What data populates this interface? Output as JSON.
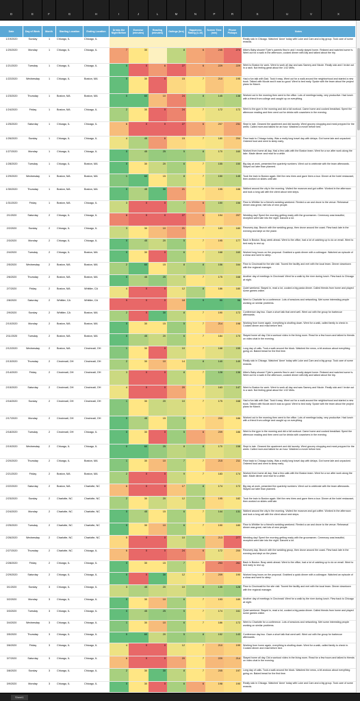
{
  "column_letters": [
    "D",
    "E",
    "F",
    "G",
    "H",
    "I",
    "J",
    "L",
    "M",
    "N",
    "P",
    "R",
    "S",
    "U",
    "V",
    "X"
  ],
  "headers": [
    "Date",
    "Day of Week",
    "Month",
    "Starting Location",
    "Ending Location",
    "Drinks the Night Before",
    "Exercise (minutes)",
    "Reading (minutes)",
    "Outings (hrs)",
    "Happiness Rating (1-10)",
    "Screen Time (min)",
    "Phone Pickups",
    "Notes"
  ],
  "notes_paragraphs": [
    "Really sick in Chicago. Watched 'Anne' today with Luke and Cam and a big group. Took care of some errands.",
    "Mike's Baby shower! Tyler's parents flew in and I mostly stayed home. Relaxed and watched some tv. Went out for a walk in the afternoon, cooked dinner with Ally and talked about the trip.",
    "Went to Boston for work. Went to work all day and saw Sammy and Nicole. Really sick and I broke out in a rash. Not feeling great about the 1:02 Mets.",
    "Had a fun talk with Dad. Took it easy. Went out for a walk around the neighborhood and started a new book. Talked with Nicole and it was so good. Went to bed early. Spoke with the team about the project plans for March.",
    "Worked out in the morning then went to the office. Lots of meetings today, very productive. Had lunch with a friend from college and caught up on everything.",
    "Went to the gym in the morning and did a full workout. Came home and cooked breakfast. Spent the afternoon reading and then went out for drinks with coworkers in the evening.",
    "Slept in late. Cleaned the apartment and did laundry. Went grocery shopping and meal prepped for the week. Called mom and talked for an hour. Watched a movie before bed.",
    "Flew back to Chicago today. Was a really long travel day with delays. Got home late and unpacked. Ordered food and went to sleep early.",
    "Worked from home all day. Had a few calls with the Boston team. Went for a run after work along the lake. Made dinner and read for a while.",
    "Big day at work, presented the quarterly numbers. Went out to celebrate with the team afterwards. Stayed out later than planned.",
    "Took the train to Boston again. Met the new hires and gave them a tour. Dinner at the hotel restaurant, then worked on slides until late.",
    "Walked around the city in the morning. Visited the museum and got coffee. Worked in the afternoon and took a long call with the client about next steps.",
    "Flew to Whittier for a friend's wedding weekend. Rented a car and drove to the venue. Rehearsal dinner was great, met lots of new people.",
    "Wedding day! Spent the morning getting ready with the groomsmen. Ceremony was beautiful, reception went late into the night. Danced a lot.",
    "Recovery day. Brunch with the wedding group, then drove around the coast. Flew back late in the evening and slept on the plane.",
    "Back in Boston. Busy week ahead. Went to the office, had a lot of catching up to do on email. Went to bed early to rest up.",
    "Worked long hours on the proposal. Grabbed a quick dinner with a colleague. Watched an episode of a show and went to sleep.",
    "Flew to Cincinnati for the site visit. Toured the facility and met with the local team. Dinner downtown with the regional manager.",
    "Another day of meetings in Cincinnati. Went for a walk by the river during lunch. Flew back to Chicago at night.",
    "Quiet weekend. Stayed in, read a lot, cooked a big pasta dinner. Called friends from home and played some games online.",
    "Went to Charlotte for a conference. Lots of sessions and networking. Met some interesting people working on similar problems.",
    "Conference day two. Gave a short talk that went well. Went out with the group for barbecue afterwards.",
    "Working from home again, everything is shutting down. Went for a walk, called family to check in. Cooked dinner and read before bed.",
    "Stayed home all day. Did a workout video in the living room. Read for a few hours and talked to friends on video chat in the evening.",
    "Long day of calls. Took a walk around the block. Watched the news, a bit anxious about everything going on. Baked bread for the first time."
  ],
  "rows": [
    {
      "date": "1/19/2020",
      "day": "Sunday",
      "month": "1",
      "start": "Chicago, IL",
      "end": "Chicago, IL",
      "drinks": "",
      "exercise": "",
      "reading": "",
      "outings": "",
      "happy": "",
      "screen": "",
      "pickups": ""
    },
    {
      "date": "1/20/2020",
      "day": "Monday",
      "month": "1",
      "start": "Chicago, IL",
      "end": "Chicago, IL",
      "drinks": "7",
      "exercise": "30",
      "reading": "",
      "outings": "8",
      "happy": "6",
      "screen": "245",
      "pickups": "274"
    },
    {
      "date": "1/21/2020",
      "day": "Tuesday",
      "month": "1",
      "start": "Chicago, IL",
      "end": "Chicago, IL",
      "drinks": "0",
      "exercise": "0",
      "reading": "6",
      "outings": "27",
      "happy": "6",
      "screen": "229",
      "pickups": "229"
    },
    {
      "date": "1/22/2020",
      "day": "Wednesday",
      "month": "1",
      "start": "Chicago, IL",
      "end": "Boston, MA",
      "drinks": "0",
      "exercise": "30",
      "reading": "0",
      "outings": "15",
      "happy": "7",
      "screen": "210",
      "pickups": "195"
    },
    {
      "date": "1/23/2020",
      "day": "Thursday",
      "month": "1",
      "start": "Boston, MA",
      "end": "Boston, MA",
      "drinks": "0",
      "exercise": "60",
      "reading": "10",
      "outings": "24",
      "happy": "8",
      "screen": "145",
      "pickups": "138"
    },
    {
      "date": "1/24/2020",
      "day": "Friday",
      "month": "1",
      "start": "Boston, MA",
      "end": "Chicago, IL",
      "drinks": "2",
      "exercise": "30",
      "reading": "0",
      "outings": "24",
      "happy": "7",
      "screen": "172",
      "pickups": "172"
    },
    {
      "date": "1/25/2020",
      "day": "Saturday",
      "month": "1",
      "start": "Chicago, IL",
      "end": "Chicago, IL",
      "drinks": "6",
      "exercise": "0",
      "reading": "0",
      "outings": "27",
      "happy": "6",
      "screen": "207",
      "pickups": "231"
    },
    {
      "date": "1/26/2020",
      "day": "Sunday",
      "month": "1",
      "start": "Chicago, IL",
      "end": "Chicago, IL",
      "drinks": "4",
      "exercise": "45",
      "reading": "6",
      "outings": "15",
      "happy": "7",
      "screen": "180",
      "pickups": "204"
    },
    {
      "date": "1/27/2020",
      "day": "Monday",
      "month": "1",
      "start": "Chicago, IL",
      "end": "Chicago, IL",
      "drinks": "0",
      "exercise": "45",
      "reading": "25",
      "outings": "5",
      "happy": "8",
      "screen": "170",
      "pickups": "160"
    },
    {
      "date": "1/28/2020",
      "day": "Tuesday",
      "month": "1",
      "start": "Chicago, IL",
      "end": "Boston, MA",
      "drinks": "0",
      "exercise": "30",
      "reading": "20",
      "outings": "6",
      "happy": "7",
      "screen": "155",
      "pickups": "150"
    },
    {
      "date": "1/29/2020",
      "day": "Wednesday",
      "month": "1",
      "start": "Boston, MA",
      "end": "Boston, MA",
      "drinks": "1",
      "exercise": "60",
      "reading": "15",
      "outings": "8",
      "happy": "7",
      "screen": "150",
      "pickups": "145"
    },
    {
      "date": "1/30/2020",
      "day": "Thursday",
      "month": "1",
      "start": "Boston, MA",
      "end": "Boston, MA",
      "drinks": "0",
      "exercise": "45",
      "reading": "30",
      "outings": "21",
      "happy": "7",
      "screen": "195",
      "pickups": "188"
    },
    {
      "date": "1/31/2020",
      "day": "Friday",
      "month": "1",
      "start": "Boston, MA",
      "end": "Chicago, IL",
      "drinks": "3",
      "exercise": "0",
      "reading": "0",
      "outings": "7",
      "happy": "6",
      "screen": "150",
      "pickups": "156"
    },
    {
      "date": "2/1/2020",
      "day": "Saturday",
      "month": "2",
      "start": "Chicago, IL",
      "end": "Chicago, IL",
      "drinks": "8",
      "exercise": "0",
      "reading": "0",
      "outings": "27",
      "happy": "6",
      "screen": "194",
      "pickups": "207"
    },
    {
      "date": "2/2/2020",
      "day": "Sunday",
      "month": "2",
      "start": "Chicago, IL",
      "end": "Chicago, IL",
      "drinks": "3",
      "exercise": "30",
      "reading": "10",
      "outings": "21",
      "happy": "7",
      "screen": "183",
      "pickups": "180"
    },
    {
      "date": "2/3/2020",
      "day": "Monday",
      "month": "2",
      "start": "Chicago, IL",
      "end": "Chicago, IL",
      "drinks": "0",
      "exercise": "45",
      "reading": "20",
      "outings": "5",
      "happy": "7",
      "screen": "195",
      "pickups": "177"
    },
    {
      "date": "2/4/2020",
      "day": "Tuesday",
      "month": "2",
      "start": "Chicago, IL",
      "end": "Boston, MA",
      "drinks": "0",
      "exercise": "30",
      "reading": "0",
      "outings": "6",
      "happy": "7",
      "screen": "168",
      "pickups": "160"
    },
    {
      "date": "2/5/2020",
      "day": "Wednesday",
      "month": "2",
      "start": "Boston, MA",
      "end": "Boston, MA",
      "drinks": "2",
      "exercise": "60",
      "reading": "15",
      "outings": "8",
      "happy": "8",
      "screen": "156",
      "pickups": "164"
    },
    {
      "date": "2/6/2020",
      "day": "Thursday",
      "month": "2",
      "start": "Boston, MA",
      "end": "Boston, MA",
      "drinks": "0",
      "exercise": "45",
      "reading": "25",
      "outings": "9",
      "happy": "7",
      "screen": "175",
      "pickups": "168"
    },
    {
      "date": "2/7/2020",
      "day": "Friday",
      "month": "2",
      "start": "Boston, MA",
      "end": "Whittier, CA",
      "drinks": "4",
      "exercise": "0",
      "reading": "0",
      "outings": "12",
      "happy": "8",
      "screen": "186",
      "pickups": "180"
    },
    {
      "date": "2/8/2020",
      "day": "Saturday",
      "month": "2",
      "start": "Whittier, CA",
      "end": "Whittier, CA",
      "drinks": "9",
      "exercise": "0",
      "reading": "0",
      "outings": "18",
      "happy": "9",
      "screen": "90",
      "pickups": "96"
    },
    {
      "date": "2/9/2020",
      "day": "Sunday",
      "month": "2",
      "start": "Whittier, CA",
      "end": "Boston, MA",
      "drinks": "2",
      "exercise": "0",
      "reading": "30",
      "outings": "8",
      "happy": "7",
      "screen": "190",
      "pickups": "172"
    },
    {
      "date": "2/10/2020",
      "day": "Monday",
      "month": "2",
      "start": "Boston, MA",
      "end": "Boston, MA",
      "drinks": "0",
      "exercise": "30",
      "reading": "15",
      "outings": "5",
      "happy": "7",
      "screen": "214",
      "pickups": "198"
    },
    {
      "date": "2/11/2020",
      "day": "Tuesday",
      "month": "2",
      "start": "Boston, MA",
      "end": "Boston, MA",
      "drinks": "0",
      "exercise": "45",
      "reading": "20",
      "outings": "6",
      "happy": "7",
      "screen": "184",
      "pickups": "170"
    },
    {
      "date": "2/12/2020",
      "day": "Wednesday",
      "month": "2",
      "start": "Boston, MA",
      "end": "Cincinnati, OH",
      "drinks": "1",
      "exercise": "30",
      "reading": "0",
      "outings": "10",
      "happy": "7",
      "screen": "168",
      "pickups": "155"
    },
    {
      "date": "2/13/2020",
      "day": "Thursday",
      "month": "2",
      "start": "Cincinnati, OH",
      "end": "Cincinnati, OH",
      "drinks": "2",
      "exercise": "30",
      "reading": "10",
      "outings": "14",
      "happy": "8",
      "screen": "140",
      "pickups": "149"
    },
    {
      "date": "2/14/2020",
      "day": "Friday",
      "month": "2",
      "start": "Cincinnati, OH",
      "end": "Cincinnati, OH",
      "drinks": "3",
      "exercise": "0",
      "reading": "0",
      "outings": "8",
      "happy": "7",
      "screen": "128",
      "pickups": "136"
    },
    {
      "date": "2/15/2020",
      "day": "Saturday",
      "month": "2",
      "start": "Cincinnati, OH",
      "end": "Cincinnati, OH",
      "drinks": "4",
      "exercise": "0",
      "reading": "0",
      "outings": "20",
      "happy": "7",
      "screen": "163",
      "pickups": "147"
    },
    {
      "date": "2/16/2020",
      "day": "Sunday",
      "month": "2",
      "start": "Cincinnati, OH",
      "end": "Cincinnati, OH",
      "drinks": "1",
      "exercise": "30",
      "reading": "20",
      "outings": "10",
      "happy": "7",
      "screen": "175",
      "pickups": "168"
    },
    {
      "date": "2/17/2020",
      "day": "Monday",
      "month": "2",
      "start": "Cincinnati, OH",
      "end": "Cincinnati, OH",
      "drinks": "0",
      "exercise": "45",
      "reading": "15",
      "outings": "6",
      "happy": "7",
      "screen": "200",
      "pickups": "186"
    },
    {
      "date": "2/18/2020",
      "day": "Tuesday",
      "month": "2",
      "start": "Cincinnati, OH",
      "end": "Chicago, IL",
      "drinks": "0",
      "exercise": "30",
      "reading": "0",
      "outings": "5",
      "happy": "6",
      "screen": "209",
      "pickups": "186"
    },
    {
      "date": "2/19/2020",
      "day": "Wednesday",
      "month": "2",
      "start": "Chicago, IL",
      "end": "Chicago, IL",
      "drinks": "0",
      "exercise": "60",
      "reading": "25",
      "outings": "8",
      "happy": "8",
      "screen": "170",
      "pickups": "158"
    },
    {
      "date": "2/20/2020",
      "day": "Thursday",
      "month": "2",
      "start": "Chicago, IL",
      "end": "Boston, MA",
      "drinks": "1",
      "exercise": "30",
      "reading": "10",
      "outings": "7",
      "happy": "7",
      "screen": "215",
      "pickups": "211"
    },
    {
      "date": "2/21/2020",
      "day": "Friday",
      "month": "2",
      "start": "Boston, MA",
      "end": "Boston, MA",
      "drinks": "2",
      "exercise": "0",
      "reading": "0",
      "outings": "9",
      "happy": "7",
      "screen": "183",
      "pickups": "174"
    },
    {
      "date": "2/22/2020",
      "day": "Saturday",
      "month": "2",
      "start": "Boston, MA",
      "end": "Charlotte, NC",
      "drinks": "6",
      "exercise": "0",
      "reading": "0",
      "outings": "17",
      "happy": "8",
      "screen": "174",
      "pickups": "172"
    },
    {
      "date": "2/23/2020",
      "day": "Sunday",
      "month": "2",
      "start": "Charlotte, NC",
      "end": "Charlotte, NC",
      "drinks": "2",
      "exercise": "30",
      "reading": "20",
      "outings": "12",
      "happy": "8",
      "screen": "195",
      "pickups": "182"
    },
    {
      "date": "2/24/2020",
      "day": "Monday",
      "month": "2",
      "start": "Charlotte, NC",
      "end": "Charlotte, NC",
      "drinks": "0",
      "exercise": "45",
      "reading": "15",
      "outings": "6",
      "happy": "7",
      "screen": "144",
      "pickups": "131"
    },
    {
      "date": "2/25/2020",
      "day": "Tuesday",
      "month": "2",
      "start": "Charlotte, NC",
      "end": "Charlotte, NC",
      "drinks": "0",
      "exercise": "30",
      "reading": "10",
      "outings": "6",
      "happy": "7",
      "screen": "190",
      "pickups": "180"
    },
    {
      "date": "2/26/2020",
      "day": "Wednesday",
      "month": "2",
      "start": "Charlotte, NC",
      "end": "Charlotte, NC",
      "drinks": "5",
      "exercise": "0",
      "reading": "0",
      "outings": "10",
      "happy": "8",
      "screen": "213",
      "pickups": "277"
    },
    {
      "date": "2/27/2020",
      "day": "Thursday",
      "month": "2",
      "start": "Charlotte, NC",
      "end": "Chicago, IL",
      "drinks": "6",
      "exercise": "0",
      "reading": "0",
      "outings": "24",
      "happy": "6",
      "screen": "172",
      "pickups": "200"
    },
    {
      "date": "2/28/2020",
      "day": "Friday",
      "month": "2",
      "start": "Chicago, IL",
      "end": "Chicago, IL",
      "drinks": "0",
      "exercise": "30",
      "reading": "15",
      "outings": "7",
      "happy": "7",
      "screen": "253",
      "pickups": "261"
    },
    {
      "date": "2/29/2020",
      "day": "Saturday",
      "month": "2",
      "start": "Chicago, IL",
      "end": "Chicago, IL",
      "drinks": "0",
      "exercise": "0",
      "reading": "30",
      "outings": "12",
      "happy": "7",
      "screen": "209",
      "pickups": "190"
    },
    {
      "date": "3/1/2020",
      "day": "Sunday",
      "month": "3",
      "start": "Chicago, IL",
      "end": "Chicago, IL",
      "drinks": "3",
      "exercise": "45",
      "reading": "20",
      "outings": "10",
      "happy": "8",
      "screen": "135",
      "pickups": "128"
    },
    {
      "date": "3/2/2020",
      "day": "Monday",
      "month": "3",
      "start": "Chicago, IL",
      "end": "Chicago, IL",
      "drinks": "0",
      "exercise": "30",
      "reading": "10",
      "outings": "6",
      "happy": "7",
      "screen": "193",
      "pickups": "189"
    },
    {
      "date": "3/3/2020",
      "day": "Tuesday",
      "month": "3",
      "start": "Chicago, IL",
      "end": "Chicago, IL",
      "drinks": "0",
      "exercise": "45",
      "reading": "25",
      "outings": "5",
      "happy": "7",
      "screen": "174",
      "pickups": "161"
    },
    {
      "date": "3/4/2020",
      "day": "Wednesday",
      "month": "3",
      "start": "Chicago, IL",
      "end": "Chicago, IL",
      "drinks": "1",
      "exercise": "30",
      "reading": "10",
      "outings": "6",
      "happy": "7",
      "screen": "186",
      "pickups": "172"
    },
    {
      "date": "3/5/2020",
      "day": "Thursday",
      "month": "3",
      "start": "Chicago, IL",
      "end": "Chicago, IL",
      "drinks": "0",
      "exercise": "60",
      "reading": "20",
      "outings": "5",
      "happy": "8",
      "screen": "152",
      "pickups": "143"
    },
    {
      "date": "3/6/2020",
      "day": "Friday",
      "month": "3",
      "start": "Chicago, IL",
      "end": "Chicago, IL",
      "drinks": "4",
      "exercise": "0",
      "reading": "0",
      "outings": "12",
      "happy": "7",
      "screen": "210",
      "pickups": "199"
    },
    {
      "date": "3/7/2020",
      "day": "Saturday",
      "month": "3",
      "start": "Chicago, IL",
      "end": "Chicago, IL",
      "drinks": "6",
      "exercise": "0",
      "reading": "0",
      "outings": "20",
      "happy": "7",
      "screen": "220",
      "pickups": "214"
    },
    {
      "date": "3/8/2020",
      "day": "Sunday",
      "month": "3",
      "start": "Chicago, IL",
      "end": "Chicago, IL",
      "drinks": "2",
      "exercise": "30",
      "reading": "30",
      "outings": "8",
      "happy": "7",
      "screen": "205",
      "pickups": "197"
    },
    {
      "date": "3/9/2020",
      "day": "Monday",
      "month": "3",
      "start": "Chicago, IL",
      "end": "Chicago, IL",
      "drinks": "0",
      "exercise": "30",
      "reading": "0",
      "outings": "6",
      "happy": "6",
      "screen": "198",
      "pickups": "190"
    }
  ],
  "sheet_tab": "Sheet1"
}
